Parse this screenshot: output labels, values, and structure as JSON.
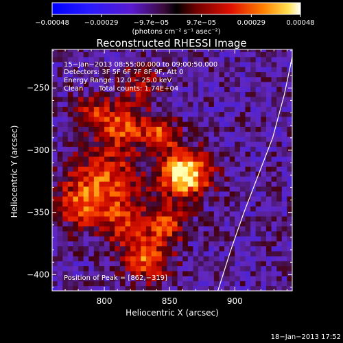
{
  "chart_data": {
    "type": "heatmap",
    "title": "Reconstructed RHESSI Image",
    "xlabel": "Heliocentric X (arcsec)",
    "ylabel": "Heliocentric Y (arcsec)",
    "xlim": [
      760,
      944
    ],
    "ylim": [
      -413,
      -219
    ],
    "x_ticks": [
      800,
      850,
      900
    ],
    "x_tick_labels": [
      "800",
      "850",
      "900"
    ],
    "y_ticks": [
      -250,
      -300,
      -350,
      -400
    ],
    "y_tick_labels": [
      "−250",
      "−300",
      "−350",
      "−400"
    ],
    "colorbar": {
      "min": -0.00048,
      "max": 0.00048,
      "ticks": [
        -0.00048,
        -0.00029,
        -9.7e-05,
        9.7e-05,
        0.00029,
        0.00048
      ],
      "tick_labels": [
        "−0.00048",
        "−0.00029",
        "−9.7e−05",
        "9.7e−05",
        "0.00029",
        "0.00048"
      ],
      "unit_label": "(photons cm⁻² s⁻¹ asec⁻²)"
    },
    "annotations": [
      "15−Jan−2013 08:55:00.000 to 09:00:50.000",
      "Detectors: 3F 5F 6F 7F 8F 9F, Att 0",
      "Energy Range: 12.0 − 25.0 keV",
      "Clean",
      "Total counts: 1.74E+04"
    ],
    "peak_label": "Position of Peak = [862,−319]",
    "peak": [
      862,
      -319
    ],
    "limb_curve": [
      [
        887,
        -413
      ],
      [
        897,
        -380
      ],
      [
        907,
        -350
      ],
      [
        918,
        -320
      ],
      [
        929,
        -290
      ],
      [
        938,
        -255
      ],
      [
        944,
        -225
      ]
    ],
    "sources": [
      {
        "x": 862,
        "y": -319,
        "sigma": 13,
        "amp": 1.0
      },
      {
        "x": 843,
        "y": -287,
        "sigma": 9,
        "amp": 0.6
      },
      {
        "x": 848,
        "y": -360,
        "sigma": 10,
        "amp": 0.55
      },
      {
        "x": 833,
        "y": -388,
        "sigma": 12,
        "amp": 0.6
      },
      {
        "x": 800,
        "y": -325,
        "sigma": 20,
        "amp": 0.55
      },
      {
        "x": 815,
        "y": -280,
        "sigma": 12,
        "amp": 0.55
      },
      {
        "x": 790,
        "y": -270,
        "sigma": 10,
        "amp": 0.45
      },
      {
        "x": 780,
        "y": -345,
        "sigma": 12,
        "amp": 0.4
      },
      {
        "x": 815,
        "y": -360,
        "sigma": 13,
        "amp": 0.4
      },
      {
        "x": 828,
        "y": -245,
        "sigma": 11,
        "amp": 0.35
      }
    ]
  },
  "footer": {
    "timestamp": "18−Jan−2013 17:52"
  }
}
